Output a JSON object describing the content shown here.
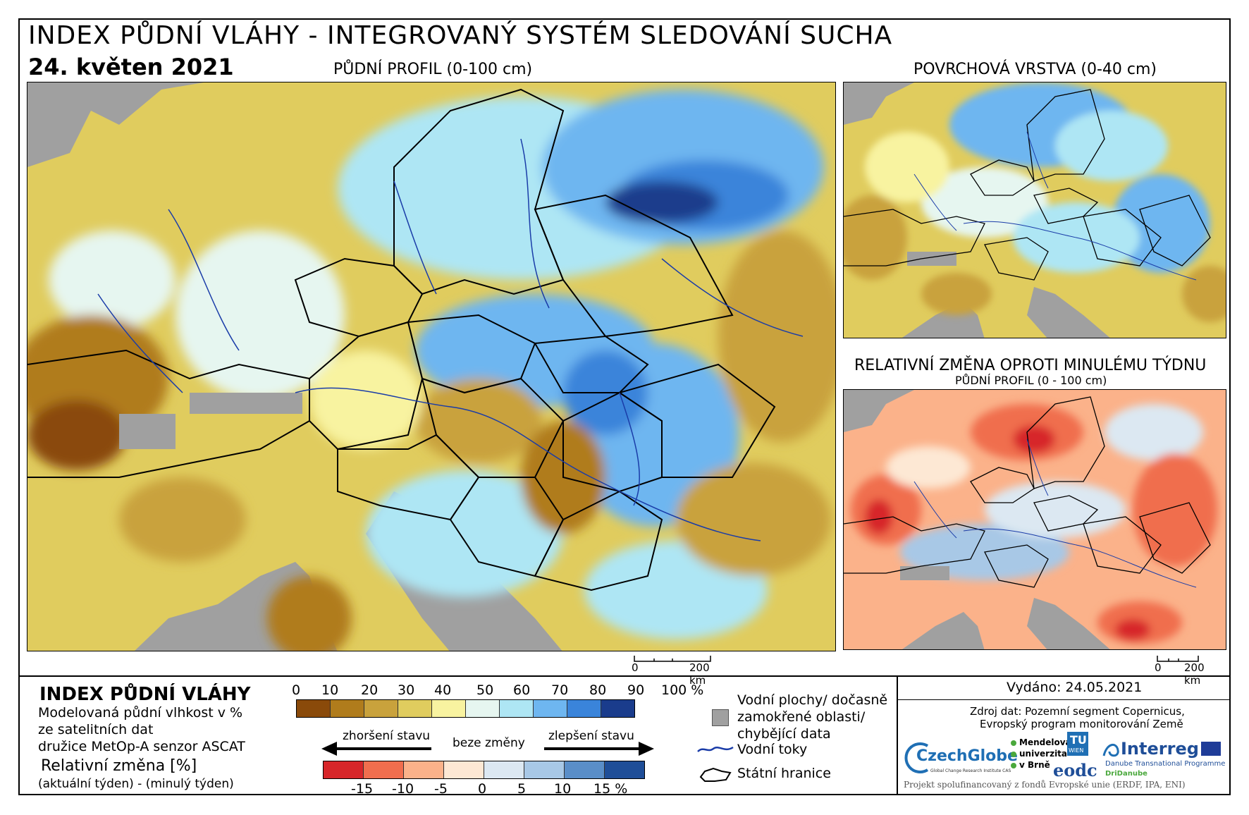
{
  "header": {
    "title": "INDEX PŮDNÍ VLÁHY - INTEGROVANÝ SYSTÉM SLEDOVÁNÍ SUCHA",
    "date": "24. květen 2021"
  },
  "panels": {
    "main_title": "PŮDNÍ PROFIL (0-100 cm)",
    "surface_title": "POVRCHOVÁ VRSTVA (0-40 cm)",
    "change_title": "RELATIVNÍ ZMĚNA OPROTI MINULÉMU TÝDNU",
    "change_subtitle": "PŮDNÍ PROFIL (0 - 100 cm)"
  },
  "scalebar": {
    "zero": "0",
    "distance": "200 km"
  },
  "legend": {
    "title": "INDEX PŮDNÍ VLÁHY",
    "desc1": "Modelovaná půdní vlhkost v %",
    "desc2": "ze satelitních dat",
    "desc3": "družice MetOp-A senzor ASCAT",
    "rel_title": "Relativní změna [%]",
    "rel_desc": "(aktuální týden) - (minulý týden)",
    "worse": "zhoršení stavu",
    "nochange": "beze změny",
    "better": "zlepšení stavu",
    "ramp_labels": [
      "0",
      "10",
      "20",
      "30",
      "40",
      "50",
      "60",
      "70",
      "80",
      "90",
      "100 %"
    ],
    "ramp_colors": [
      "#8a4a0a",
      "#b07c1c",
      "#c9a23c",
      "#e0cc5e",
      "#f8f3a0",
      "#e6f6f0",
      "#aee6f4",
      "#6eb6f0",
      "#3a84da",
      "#1a3c8c"
    ],
    "rel_labels": [
      "-15",
      "-10",
      "-5",
      "0",
      "5",
      "10",
      "15 %"
    ],
    "rel_colors": [
      "#d7262a",
      "#f06e4e",
      "#fbb28a",
      "#fde8d4",
      "#dce8f2",
      "#a8c8e6",
      "#5a8ec8",
      "#1f4e98"
    ],
    "water_bodies": "Vodní plochy/ dočasně",
    "water_bodies2": "zamokřené oblasti/",
    "water_bodies3": "chybějící data",
    "rivers": "Vodní toky",
    "borders": "Státní hranice"
  },
  "footer": {
    "issued": "Vydáno: 24.05.2021",
    "source1": "Zdroj dat: Pozemní segment Copernicus,",
    "source2": "Evropský program monitorování Země",
    "czechglobe": "CzechGlobe",
    "czechglobe_sub": "Global Change Research Institute CAS",
    "mendel1": "Mendelova",
    "mendel2": "univerzita",
    "mendel3": "v Brně",
    "tu": "TU",
    "wien": "WIEN",
    "eodc": "eodc",
    "interreg": "Interreg",
    "interreg_sub1": "Danube Transnational Programme",
    "interreg_sub2": "DriDanube",
    "project": "Projekt spolufinancovaný z fondů Evropské unie (ERDF, IPA, ENI)"
  },
  "colors": {
    "sea": "#a0a0a0",
    "border": "#000000",
    "river": "#1a3ca8"
  }
}
